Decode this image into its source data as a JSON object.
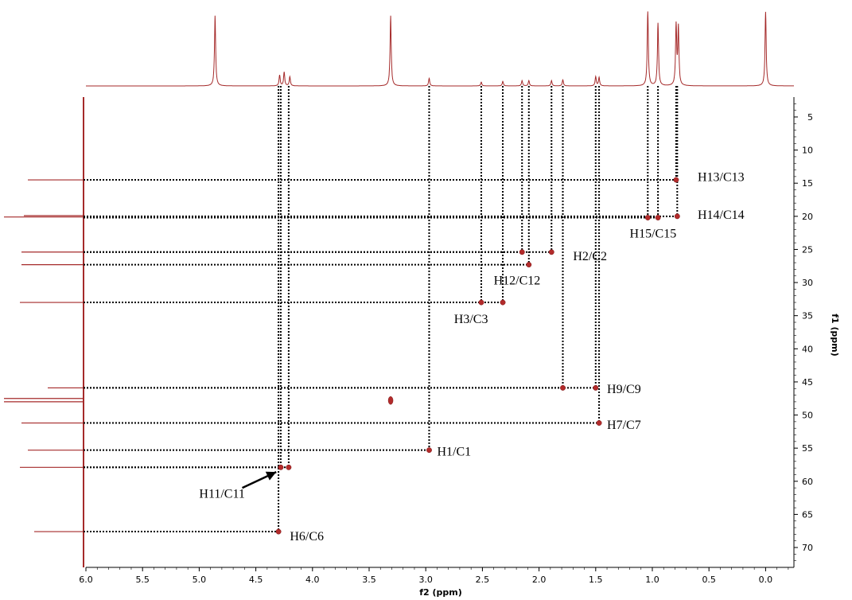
{
  "chart_data": {
    "type": "heatmap",
    "subtype": "2D NMR HSQC correlation spectrum",
    "title": "",
    "xlabel": "f2 (ppm)",
    "ylabel": "f1 (ppm)",
    "xlim": [
      6.0,
      -0.25
    ],
    "ylim": [
      2,
      73
    ],
    "x_reversed": true,
    "y_reversed": true,
    "xticks": [
      6.0,
      5.5,
      5.0,
      4.5,
      4.0,
      3.5,
      3.0,
      2.5,
      2.0,
      1.5,
      1.0,
      0.5,
      0.0
    ],
    "yticks": [
      5,
      10,
      15,
      20,
      25,
      30,
      35,
      40,
      45,
      50,
      55,
      60,
      65,
      70
    ],
    "colors": {
      "peak": "#b32b2b",
      "spectrum": "#a52a2a",
      "guide": "#000000"
    },
    "cross_peaks": [
      {
        "label": "H13/C13",
        "x": 0.79,
        "y": 14.5
      },
      {
        "label": "H14/C14",
        "x": 0.78,
        "y": 20.0
      },
      {
        "label": "H15/C15",
        "x": 1.04,
        "y": 20.2
      },
      {
        "label": "H15/C15",
        "x": 0.95,
        "y": 20.2
      },
      {
        "label": "H2/C2",
        "x": 2.15,
        "y": 25.4
      },
      {
        "label": "H2/C2",
        "x": 1.89,
        "y": 25.4
      },
      {
        "label": "H12/C12",
        "x": 2.09,
        "y": 27.3
      },
      {
        "label": "H3/C3",
        "x": 2.51,
        "y": 33.0
      },
      {
        "label": "H3/C3",
        "x": 2.32,
        "y": 33.0
      },
      {
        "label": "H9/C9",
        "x": 1.79,
        "y": 45.9
      },
      {
        "label": "H9/C9",
        "x": 1.5,
        "y": 45.9
      },
      {
        "label": "H7/C7",
        "x": 1.47,
        "y": 51.2
      },
      {
        "label": "H1/C1",
        "x": 2.97,
        "y": 55.3
      },
      {
        "label": "H11/C11",
        "x": 4.28,
        "y": 57.9
      },
      {
        "label": "H11/C11",
        "x": 4.21,
        "y": 57.9
      },
      {
        "label": "H6/C6",
        "x": 4.3,
        "y": 67.6
      },
      {
        "label": "",
        "x": 3.31,
        "y": 47.8
      }
    ],
    "annotations": [
      {
        "text": "H13/C13",
        "x": 0.6,
        "y": 14.1
      },
      {
        "text": "H14/C14",
        "x": 0.6,
        "y": 19.8
      },
      {
        "text": "H15/C15",
        "x": 1.2,
        "y": 22.6
      },
      {
        "text": "H2/C2",
        "x": 1.7,
        "y": 26.0
      },
      {
        "text": "H12/C12",
        "x": 2.4,
        "y": 29.7
      },
      {
        "text": "H3/C3",
        "x": 2.75,
        "y": 35.5
      },
      {
        "text": "H9/C9",
        "x": 1.4,
        "y": 46.1
      },
      {
        "text": "H7/C7",
        "x": 1.4,
        "y": 51.5
      },
      {
        "text": "H1/C1",
        "x": 2.9,
        "y": 55.5
      },
      {
        "text": "H11/C11",
        "x": 5.0,
        "y": 61.9
      },
      {
        "text": "H6/C6",
        "x": 4.2,
        "y": 68.3
      }
    ],
    "arrow": {
      "label": "H11/C11",
      "from": [
        4.62,
        61.0
      ],
      "to": [
        4.32,
        58.6
      ]
    },
    "f2_projection_peaks": [
      {
        "x": 4.86,
        "height": 0.92
      },
      {
        "x": 3.31,
        "height": 0.92
      },
      {
        "x": 4.29,
        "height": 0.14
      },
      {
        "x": 4.25,
        "height": 0.18
      },
      {
        "x": 4.2,
        "height": 0.12
      },
      {
        "x": 2.97,
        "height": 0.1
      },
      {
        "x": 2.51,
        "height": 0.05
      },
      {
        "x": 2.32,
        "height": 0.06
      },
      {
        "x": 2.15,
        "height": 0.07
      },
      {
        "x": 2.09,
        "height": 0.07
      },
      {
        "x": 1.89,
        "height": 0.07
      },
      {
        "x": 1.79,
        "height": 0.08
      },
      {
        "x": 1.5,
        "height": 0.12
      },
      {
        "x": 1.47,
        "height": 0.11
      },
      {
        "x": 1.04,
        "height": 0.97
      },
      {
        "x": 0.95,
        "height": 0.82
      },
      {
        "x": 0.79,
        "height": 0.78
      },
      {
        "x": 0.77,
        "height": 0.75
      },
      {
        "x": 0.0,
        "height": 0.97
      }
    ],
    "f1_projection_peaks": [
      {
        "y": 14.5,
        "length": 0.7
      },
      {
        "y": 19.9,
        "length": 0.75
      },
      {
        "y": 20.1,
        "length": 1.0
      },
      {
        "y": 25.4,
        "length": 0.78
      },
      {
        "y": 27.3,
        "length": 0.78
      },
      {
        "y": 33.0,
        "length": 0.8
      },
      {
        "y": 45.9,
        "length": 0.45
      },
      {
        "y": 47.5,
        "length": 1.0
      },
      {
        "y": 48.0,
        "length": 1.0
      },
      {
        "y": 51.2,
        "length": 0.78
      },
      {
        "y": 55.3,
        "length": 0.7
      },
      {
        "y": 57.9,
        "length": 0.8
      },
      {
        "y": 67.6,
        "length": 0.62
      }
    ]
  }
}
